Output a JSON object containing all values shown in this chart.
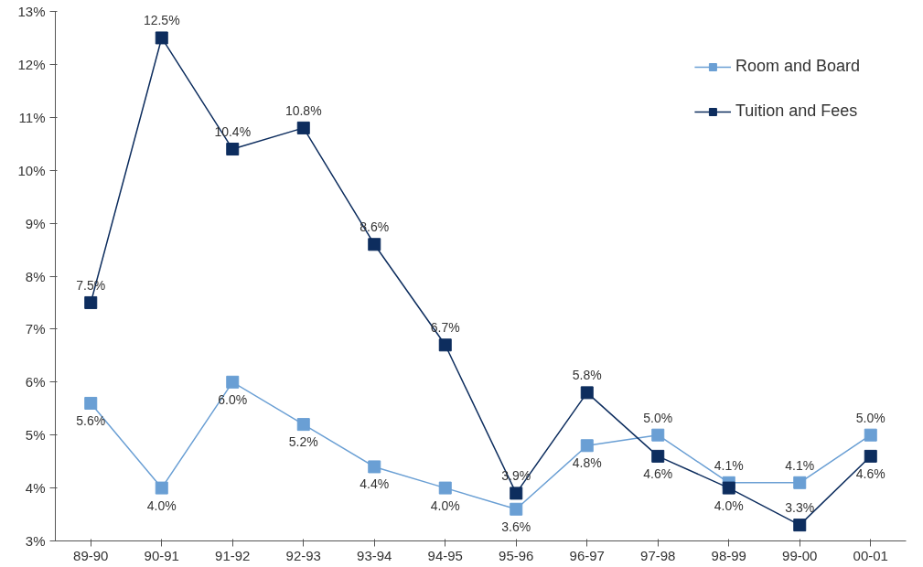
{
  "chart_data": {
    "type": "line",
    "categories": [
      "89-90",
      "90-91",
      "91-92",
      "92-93",
      "93-94",
      "94-95",
      "95-96",
      "96-97",
      "97-98",
      "98-99",
      "99-00",
      "00-01"
    ],
    "series": [
      {
        "name": "Room and Board",
        "color": "#6a9fd4",
        "values": [
          5.6,
          4.0,
          6.0,
          5.2,
          4.4,
          4.0,
          3.6,
          4.8,
          5.0,
          4.1,
          4.1,
          5.0
        ],
        "value_labels": [
          "5.6%",
          "4.0%",
          "6.0%",
          "5.2%",
          "4.4%",
          "4.0%",
          "3.6%",
          "4.8%",
          "5.0%",
          "4.1%",
          "4.1%",
          "5.0%"
        ]
      },
      {
        "name": "Tuition and Fees",
        "color": "#0d2d5e",
        "values": [
          7.5,
          12.5,
          10.4,
          10.8,
          8.6,
          6.7,
          3.9,
          5.8,
          4.6,
          4.0,
          3.3,
          4.6
        ],
        "value_labels": [
          "7.5%",
          "12.5%",
          "10.4%",
          "10.8%",
          "8.6%",
          "6.7%",
          "3.9%",
          "5.8%",
          "4.6%",
          "4.0%",
          "3.3%",
          "4.6%"
        ]
      }
    ],
    "ylim": [
      3,
      13
    ],
    "yticks": [
      {
        "value": 3,
        "label": "3%"
      },
      {
        "value": 4,
        "label": "4%"
      },
      {
        "value": 5,
        "label": "5%"
      },
      {
        "value": 6,
        "label": "6%"
      },
      {
        "value": 7,
        "label": "7%"
      },
      {
        "value": 8,
        "label": "8%"
      },
      {
        "value": 9,
        "label": "9%"
      },
      {
        "value": 10,
        "label": "10%"
      },
      {
        "value": 11,
        "label": "11%"
      },
      {
        "value": 12,
        "label": "12%"
      },
      {
        "value": 13,
        "label": "13%"
      }
    ],
    "marker": "square",
    "line_style": "solid",
    "grid": false,
    "legend": "top right"
  }
}
